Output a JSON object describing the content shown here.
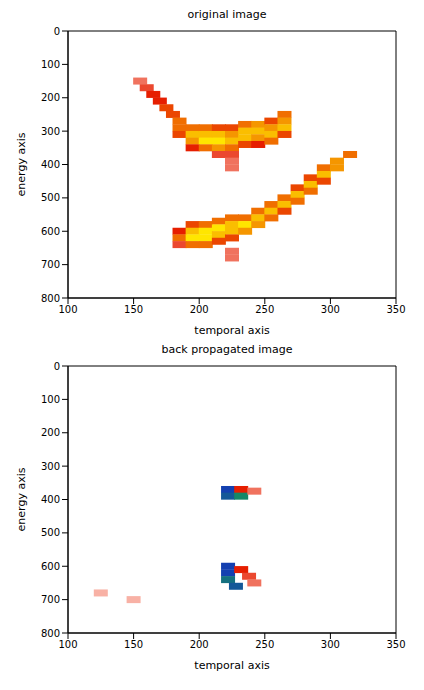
{
  "chart_data": [
    {
      "type": "heatmap",
      "title": "original image",
      "x_label": "temporal axis",
      "y_label": "energy axis",
      "xlim": [
        100,
        350
      ],
      "xticks": [
        100,
        150,
        200,
        250,
        300,
        350
      ],
      "ylim": [
        800,
        0
      ],
      "yticks": [
        0,
        100,
        200,
        300,
        400,
        500,
        600,
        700,
        800
      ],
      "cells": [
        [
          155,
          150,
          0.3
        ],
        [
          160,
          170,
          0.4
        ],
        [
          165,
          190,
          0.5
        ],
        [
          170,
          210,
          0.5
        ],
        [
          175,
          230,
          0.6
        ],
        [
          180,
          250,
          0.6
        ],
        [
          185,
          270,
          0.7
        ],
        [
          185,
          290,
          0.7
        ],
        [
          185,
          310,
          0.6
        ],
        [
          195,
          290,
          0.7
        ],
        [
          195,
          310,
          0.9
        ],
        [
          195,
          330,
          0.8
        ],
        [
          195,
          350,
          0.5
        ],
        [
          205,
          290,
          0.7
        ],
        [
          205,
          310,
          0.9
        ],
        [
          205,
          330,
          1
        ],
        [
          205,
          350,
          0.7
        ],
        [
          215,
          290,
          0.6
        ],
        [
          215,
          310,
          0.9
        ],
        [
          215,
          330,
          1
        ],
        [
          215,
          350,
          0.8
        ],
        [
          215,
          370,
          0.4
        ],
        [
          225,
          290,
          0.6
        ],
        [
          225,
          310,
          0.8
        ],
        [
          225,
          330,
          0.9
        ],
        [
          225,
          350,
          0.7
        ],
        [
          225,
          370,
          0.4
        ],
        [
          225,
          390,
          0.3
        ],
        [
          225,
          410,
          0.3
        ],
        [
          235,
          280,
          0.7
        ],
        [
          235,
          300,
          0.9
        ],
        [
          235,
          320,
          0.9
        ],
        [
          235,
          340,
          0.6
        ],
        [
          245,
          280,
          0.8
        ],
        [
          245,
          300,
          0.9
        ],
        [
          245,
          320,
          0.8
        ],
        [
          245,
          340,
          0.5
        ],
        [
          255,
          270,
          0.6
        ],
        [
          255,
          290,
          0.8
        ],
        [
          255,
          310,
          0.9
        ],
        [
          255,
          330,
          0.7
        ],
        [
          265,
          250,
          0.7
        ],
        [
          265,
          270,
          0.8
        ],
        [
          265,
          290,
          0.9
        ],
        [
          265,
          310,
          0.6
        ],
        [
          185,
          600,
          0.5
        ],
        [
          185,
          620,
          0.7
        ],
        [
          185,
          640,
          0.4
        ],
        [
          195,
          580,
          0.6
        ],
        [
          195,
          600,
          0.9
        ],
        [
          195,
          620,
          1
        ],
        [
          195,
          640,
          0.7
        ],
        [
          205,
          580,
          0.7
        ],
        [
          205,
          600,
          1
        ],
        [
          205,
          620,
          1
        ],
        [
          205,
          640,
          0.7
        ],
        [
          215,
          570,
          0.7
        ],
        [
          215,
          590,
          1
        ],
        [
          215,
          610,
          0.9
        ],
        [
          215,
          630,
          0.6
        ],
        [
          225,
          560,
          0.7
        ],
        [
          225,
          580,
          0.9
        ],
        [
          225,
          600,
          0.9
        ],
        [
          225,
          620,
          0.6
        ],
        [
          225,
          660,
          0.3
        ],
        [
          225,
          680,
          0.3
        ],
        [
          235,
          560,
          0.7
        ],
        [
          235,
          580,
          1
        ],
        [
          235,
          600,
          0.8
        ],
        [
          245,
          540,
          0.7
        ],
        [
          245,
          560,
          0.9
        ],
        [
          245,
          580,
          0.8
        ],
        [
          255,
          520,
          0.7
        ],
        [
          255,
          540,
          0.9
        ],
        [
          255,
          560,
          0.7
        ],
        [
          265,
          500,
          0.7
        ],
        [
          265,
          520,
          0.9
        ],
        [
          265,
          540,
          0.6
        ],
        [
          275,
          470,
          0.6
        ],
        [
          275,
          490,
          0.9
        ],
        [
          275,
          510,
          0.7
        ],
        [
          285,
          440,
          0.6
        ],
        [
          285,
          460,
          0.9
        ],
        [
          285,
          480,
          0.7
        ],
        [
          295,
          410,
          0.7
        ],
        [
          295,
          430,
          0.9
        ],
        [
          295,
          450,
          0.6
        ],
        [
          305,
          390,
          0.8
        ],
        [
          305,
          410,
          0.8
        ],
        [
          315,
          370,
          0.7
        ]
      ]
    },
    {
      "type": "heatmap",
      "title": "back propagated image",
      "x_label": "temporal axis",
      "y_label": "energy axis",
      "xlim": [
        100,
        350
      ],
      "xticks": [
        100,
        150,
        200,
        250,
        300,
        350
      ],
      "ylim": [
        800,
        0
      ],
      "yticks": [
        0,
        100,
        200,
        300,
        400,
        500,
        600,
        700,
        800
      ],
      "cells": [
        [
          222,
          370,
          -0.9
        ],
        [
          222,
          390,
          -0.8
        ],
        [
          232,
          370,
          0.5
        ],
        [
          232,
          390,
          -0.6
        ],
        [
          242,
          375,
          0.3
        ],
        [
          222,
          600,
          -0.9
        ],
        [
          222,
          620,
          -0.9
        ],
        [
          222,
          640,
          -0.7
        ],
        [
          228,
          660,
          -0.8
        ],
        [
          232,
          610,
          0.5
        ],
        [
          238,
          630,
          0.4
        ],
        [
          242,
          650,
          0.3
        ],
        [
          125,
          680,
          0.15
        ],
        [
          150,
          700,
          0.15
        ]
      ]
    }
  ]
}
